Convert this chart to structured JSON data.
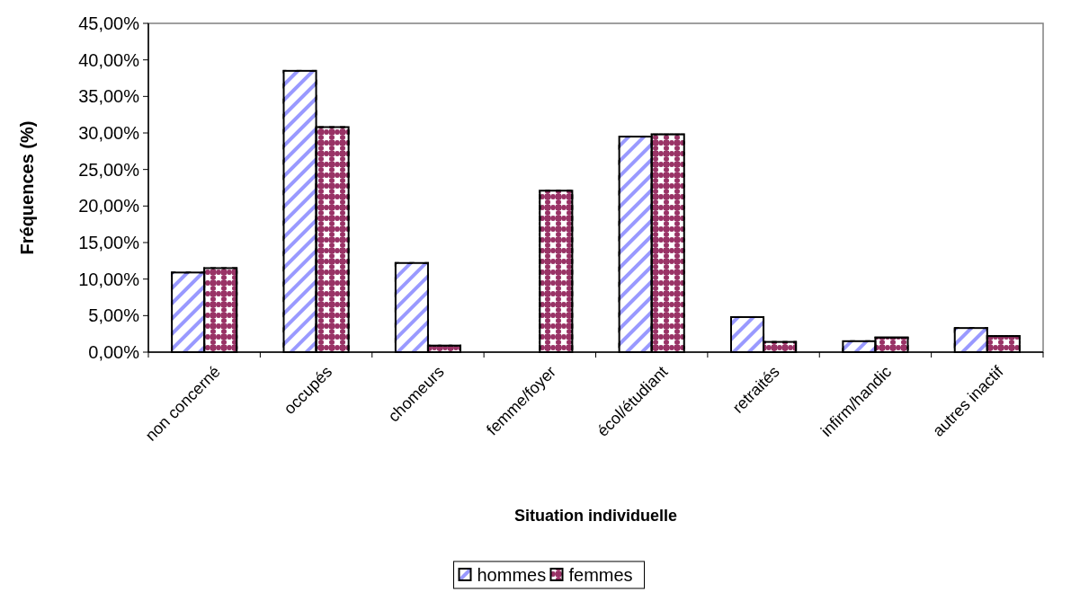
{
  "chart_data": {
    "type": "bar",
    "xlabel": "Situation individuelle",
    "ylabel": "Fréquences (%)",
    "categories": [
      "non concerné",
      "occupés",
      "chomeurs",
      "femme/foyer",
      "écol/étudiant",
      "retraités",
      "infirm/handic",
      "autres inactif"
    ],
    "series": [
      {
        "name": "hommes",
        "color": "#9999ff",
        "values": [
          10.9,
          38.5,
          12.2,
          0,
          29.5,
          4.8,
          1.5,
          3.3
        ]
      },
      {
        "name": "femmes",
        "color": "#993366",
        "values": [
          11.5,
          30.8,
          0.9,
          22.1,
          29.8,
          1.4,
          2.0,
          2.2
        ]
      }
    ],
    "ylim": [
      0,
      45
    ],
    "yticks": [
      {
        "value": 0,
        "label": "0,00%"
      },
      {
        "value": 5,
        "label": "5,00%"
      },
      {
        "value": 10,
        "label": "10,00%"
      },
      {
        "value": 15,
        "label": "15,00%"
      },
      {
        "value": 20,
        "label": "20,00%"
      },
      {
        "value": 25,
        "label": "25,00%"
      },
      {
        "value": 30,
        "label": "30,00%"
      },
      {
        "value": 35,
        "label": "35,00%"
      },
      {
        "value": 40,
        "label": "40,00%"
      },
      {
        "value": 45,
        "label": "45,00%"
      }
    ],
    "grid": false,
    "legend": "bottom"
  }
}
